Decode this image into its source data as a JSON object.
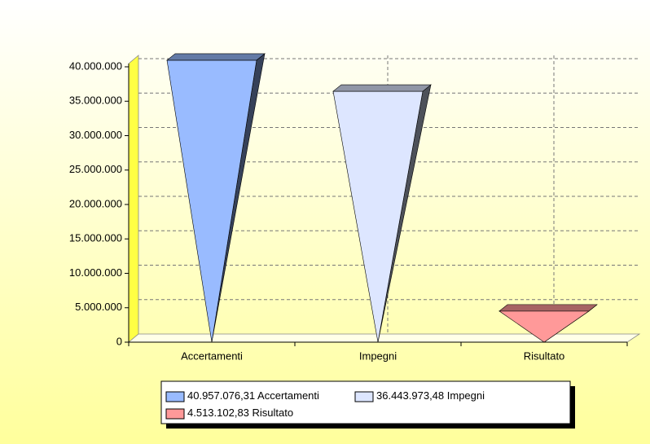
{
  "chart_data": {
    "type": "pyramid",
    "categories": [
      "Accertamenti",
      "Impegni",
      "Risultato"
    ],
    "values": [
      40957076.31,
      36443973.48,
      4513102.83
    ],
    "value_labels": [
      "40.957.076,31",
      "36.443.973,48",
      "4.513.102,83"
    ],
    "colors": [
      "#99bbff",
      "#dde6ff",
      "#ff9999"
    ],
    "ylim": [
      0,
      40000000
    ],
    "yticks": [
      0,
      {
        "value": 5000000,
        "label": "5.000.000"
      },
      {
        "value": 10000000,
        "label": "10.000.000"
      },
      {
        "value": 15000000,
        "label": "15.000.000"
      },
      {
        "value": 20000000,
        "label": "20.000.000"
      },
      {
        "value": 25000000,
        "label": "25.000.000"
      },
      {
        "value": 30000000,
        "label": "30.000.000"
      },
      {
        "value": 35000000,
        "label": "35.000.000"
      },
      {
        "value": 40000000,
        "label": "40.000.000"
      }
    ],
    "grid": true
  }
}
